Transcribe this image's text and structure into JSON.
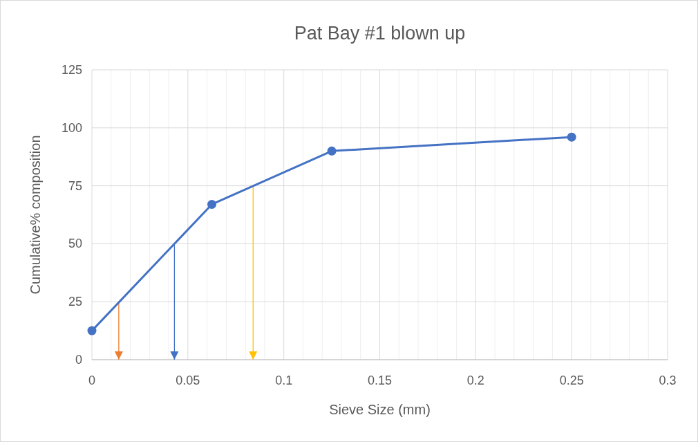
{
  "chart_data": {
    "type": "line",
    "title": "Pat Bay #1 blown up",
    "xlabel": "Sieve Size (mm)",
    "ylabel": "Cumulative% composition",
    "xlim": [
      0,
      0.3
    ],
    "xticks": [
      0,
      0.05,
      0.1,
      0.15,
      0.2,
      0.25,
      0.3
    ],
    "ylim": [
      0,
      125
    ],
    "yticks": [
      0,
      25,
      50,
      75,
      100,
      125
    ],
    "grid": true,
    "series": [
      {
        "x": [
          0,
          0.0625,
          0.125,
          0.25
        ],
        "values": [
          12.5,
          67,
          90,
          96
        ],
        "color": "#4472c4",
        "marker": "circle"
      },
      {
        "x": [
          0.014,
          0.014
        ],
        "values": [
          25,
          0
        ],
        "color": "#ed7d31",
        "marker": "none"
      },
      {
        "x": [
          0.043,
          0.043
        ],
        "values": [
          50,
          0
        ],
        "color": "#4472c4",
        "marker": "none"
      },
      {
        "x": [
          0.084,
          0.084
        ],
        "values": [
          75,
          0
        ],
        "color": "#ffc000",
        "marker": "none"
      }
    ]
  }
}
